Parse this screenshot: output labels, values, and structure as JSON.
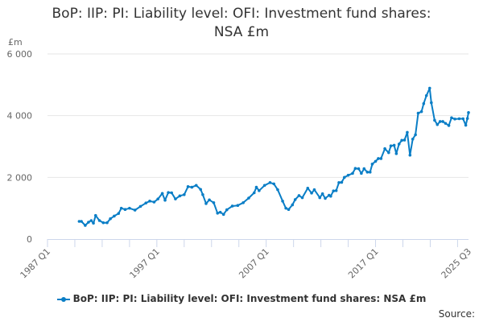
{
  "chart_data": {
    "type": "line",
    "title_lines": [
      "BoP: IIP: PI: Liability level: OFI: Investment fund shares:",
      "NSA £m"
    ],
    "ylabel": "£m",
    "xlabel": "",
    "xlim": [
      1987.0,
      2025.5
    ],
    "ylim": [
      0,
      6000
    ],
    "yticks": [
      0,
      2000,
      4000,
      6000
    ],
    "ytick_labels": [
      "0",
      "2 000",
      "4 000",
      "6 000"
    ],
    "xtick_labels": [
      {
        "x": 1987.0,
        "label": "1987 Q1"
      },
      {
        "x": 1997.0,
        "label": "1997 Q1"
      },
      {
        "x": 2007.0,
        "label": "2007 Q1"
      },
      {
        "x": 2017.0,
        "label": "2017 Q1"
      },
      {
        "x": 2025.5,
        "label": "2025 Q3"
      }
    ],
    "grid": true,
    "legend_position": "bottom",
    "color": "#0a7ec6",
    "series": [
      {
        "name": "BoP: IIP: PI: Liability level: OFI: Investment fund shares: NSA £m",
        "x": [
          1989.9,
          1990.1,
          1990.45,
          1990.75,
          1991.0,
          1991.2,
          1991.4,
          1991.75,
          1992.1,
          1992.45,
          1992.75,
          1993.1,
          1993.5,
          1993.75,
          1994.1,
          1994.5,
          1995.0,
          1995.5,
          1996.0,
          1996.35,
          1996.75,
          1997.1,
          1997.5,
          1997.75,
          1998.05,
          1998.35,
          1998.7,
          1999.1,
          1999.5,
          1999.85,
          2000.2,
          2000.6,
          2001.0,
          2001.2,
          2001.5,
          2001.8,
          2002.2,
          2002.55,
          2002.8,
          2003.1,
          2003.4,
          2003.9,
          2004.4,
          2004.9,
          2005.4,
          2005.9,
          2006.1,
          2006.35,
          2006.85,
          2007.35,
          2007.7,
          2008.05,
          2008.5,
          2008.8,
          2009.05,
          2009.4,
          2009.65,
          2010.0,
          2010.3,
          2010.8,
          2011.15,
          2011.4,
          2011.9,
          2012.15,
          2012.4,
          2012.75,
          2012.9,
          2013.15,
          2013.4,
          2013.65,
          2013.9,
          2014.15,
          2014.5,
          2014.9,
          2015.15,
          2015.45,
          2015.7,
          2015.95,
          2016.25,
          2016.5,
          2016.7,
          2017.0,
          2017.25,
          2017.5,
          2017.85,
          2018.2,
          2018.4,
          2018.7,
          2018.9,
          2019.15,
          2019.4,
          2019.65,
          2019.9,
          2020.15,
          2020.4,
          2020.65,
          2020.9,
          2021.2,
          2021.4,
          2021.65,
          2021.95,
          2022.1,
          2022.4,
          2022.65,
          2022.9,
          2023.15,
          2023.4,
          2023.7,
          2023.95,
          2024.25,
          2024.65,
          2025.0,
          2025.25,
          2025.4,
          2025.5
        ],
        "values": [
          574,
          574,
          444,
          548,
          600,
          515,
          765,
          600,
          530,
          530,
          660,
          745,
          830,
          1000,
          960,
          1000,
          940,
          1060,
          1170,
          1230,
          1200,
          1300,
          1480,
          1260,
          1510,
          1500,
          1300,
          1400,
          1440,
          1700,
          1680,
          1740,
          1610,
          1440,
          1150,
          1270,
          1180,
          840,
          870,
          800,
          950,
          1070,
          1090,
          1180,
          1330,
          1500,
          1680,
          1570,
          1740,
          1830,
          1790,
          1600,
          1230,
          1000,
          960,
          1110,
          1280,
          1410,
          1340,
          1650,
          1490,
          1600,
          1340,
          1470,
          1320,
          1420,
          1390,
          1560,
          1570,
          1830,
          1840,
          2000,
          2070,
          2130,
          2290,
          2280,
          2130,
          2280,
          2170,
          2170,
          2430,
          2520,
          2610,
          2610,
          2930,
          2800,
          3020,
          3040,
          2770,
          3080,
          3200,
          3210,
          3460,
          2720,
          3240,
          3380,
          4080,
          4130,
          4390,
          4650,
          4890,
          4420,
          3850,
          3710,
          3810,
          3810,
          3750,
          3680,
          3930,
          3890,
          3900,
          3900,
          3690,
          3910,
          4100
        ]
      }
    ]
  },
  "legend_label": "BoP: IIP: PI: Liability level: OFI: Investment fund shares: NSA £m",
  "source_label": "Source:"
}
